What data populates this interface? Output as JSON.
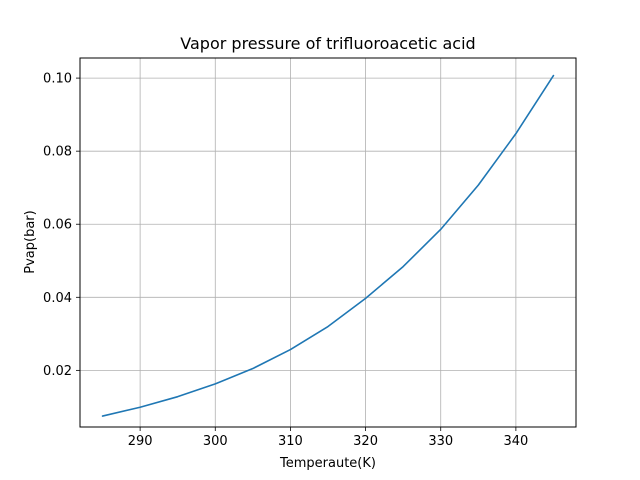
{
  "chart_data": {
    "type": "line",
    "title": "Vapor pressure of trifluoroacetic acid",
    "xlabel": "Temperaute(K)",
    "ylabel": "Pvap(bar)",
    "xlim": [
      282,
      348
    ],
    "ylim": [
      0.0045,
      0.1055
    ],
    "xticks": [
      290,
      300,
      310,
      320,
      330,
      340
    ],
    "yticks": [
      0.02,
      0.04,
      0.06,
      0.08,
      0.1
    ],
    "xtick_labels": [
      "290",
      "300",
      "310",
      "320",
      "330",
      "340"
    ],
    "ytick_labels": [
      "0.02",
      "0.04",
      "0.06",
      "0.08",
      "0.10"
    ],
    "grid": true,
    "series": [
      {
        "color": "#1f77b4",
        "x": [
          285,
          290,
          295,
          300,
          305,
          310,
          315,
          320,
          325,
          330,
          335,
          340,
          345
        ],
        "y": [
          0.0075,
          0.0099,
          0.0128,
          0.0163,
          0.0205,
          0.0257,
          0.032,
          0.0397,
          0.0484,
          0.0586,
          0.0707,
          0.0848,
          0.1007
        ]
      }
    ]
  }
}
